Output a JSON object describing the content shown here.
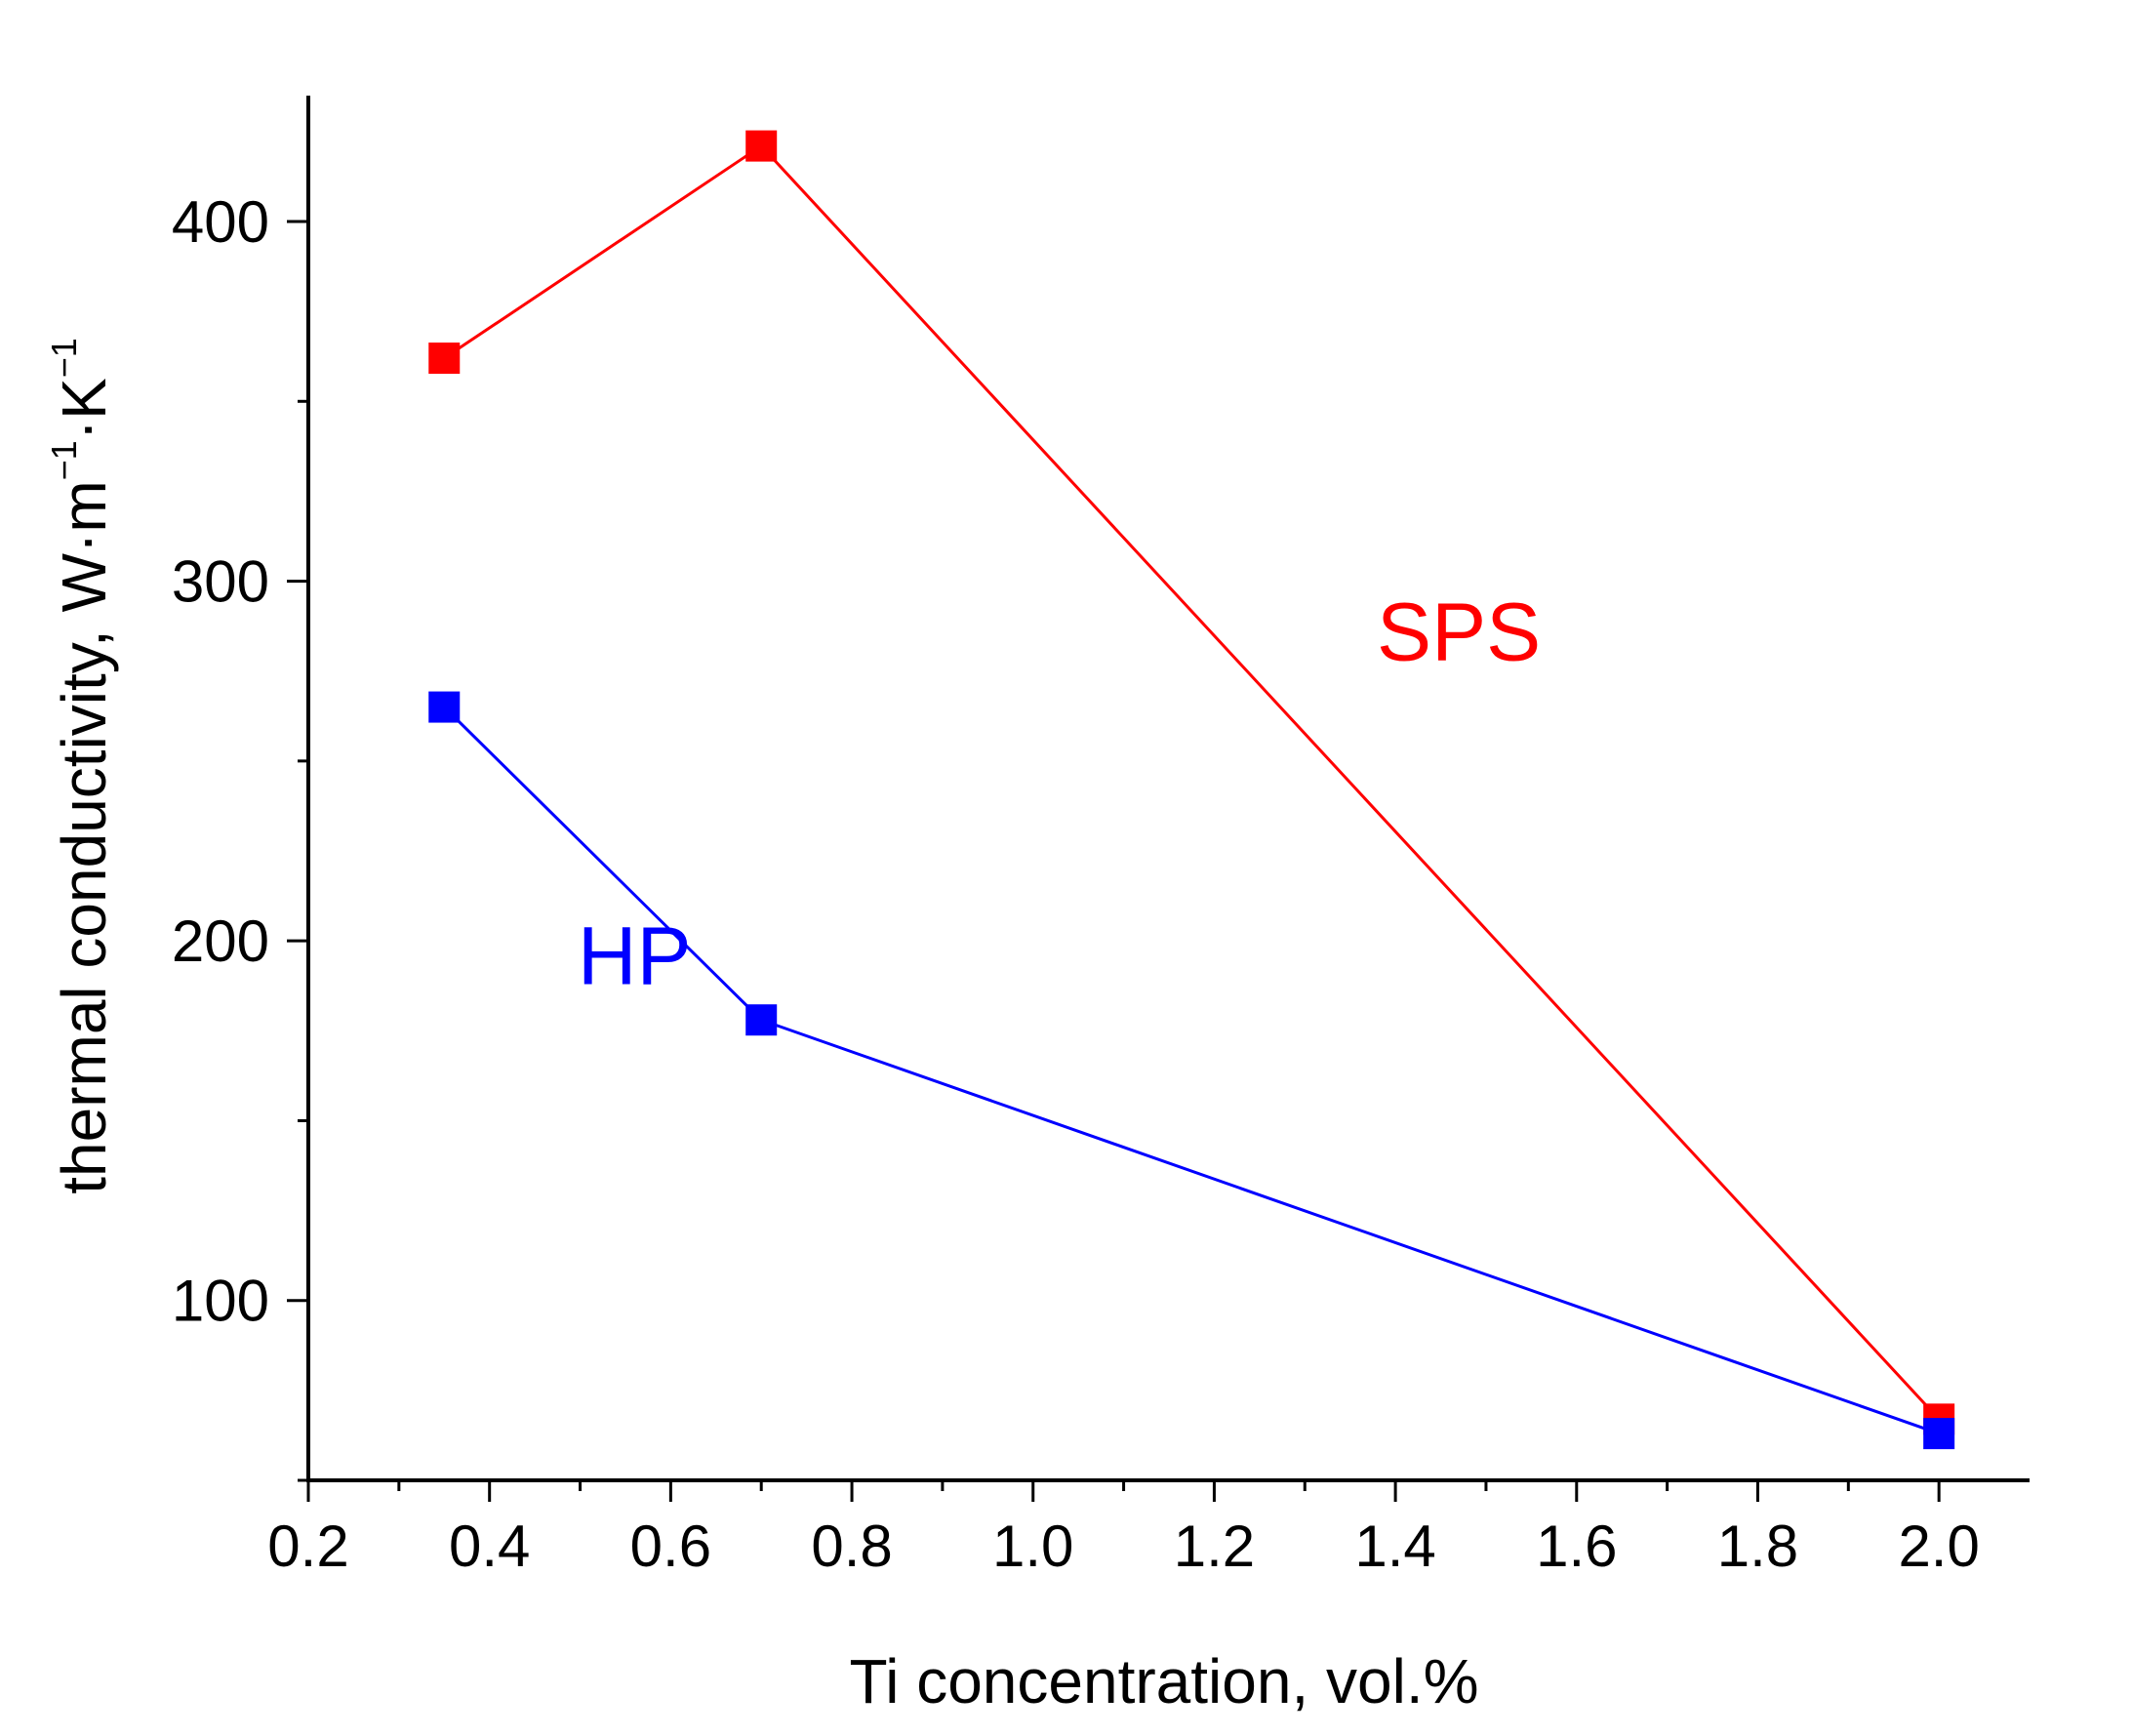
{
  "chart_data": {
    "type": "line",
    "title": "",
    "xlabel": "Ti concentration, vol.%",
    "ylabel": {
      "main": "thermal conductivity, W·m",
      "exp1": "−1",
      "mid": "·K",
      "exp2": "−1"
    },
    "xlim": [
      0.2,
      2.1
    ],
    "ylim": [
      50,
      435
    ],
    "x_ticks": [
      0.2,
      0.4,
      0.6,
      0.8,
      1.0,
      1.2,
      1.4,
      1.6,
      1.8,
      2.0
    ],
    "x_tick_labels": [
      "0.2",
      "0.4",
      "0.6",
      "0.8",
      "1.0",
      "1.2",
      "1.4",
      "1.6",
      "1.8",
      "2.0"
    ],
    "y_ticks": [
      100,
      200,
      300,
      400
    ],
    "y_tick_labels": [
      "100",
      "200",
      "300",
      "400"
    ],
    "grid": false,
    "series": [
      {
        "name": "SPS",
        "color": "#ff0000",
        "x": [
          0.35,
          0.7,
          2.0
        ],
        "y": [
          362,
          421,
          67
        ]
      },
      {
        "name": "HP",
        "color": "#0000ff",
        "x": [
          0.35,
          0.7,
          2.0
        ],
        "y": [
          265,
          178,
          63
        ]
      }
    ],
    "annotations": [
      {
        "text": "SPS",
        "series": "SPS",
        "x": 1.47,
        "y": 278
      },
      {
        "text": "HP",
        "series": "HP",
        "x": 0.56,
        "y": 188
      }
    ]
  }
}
